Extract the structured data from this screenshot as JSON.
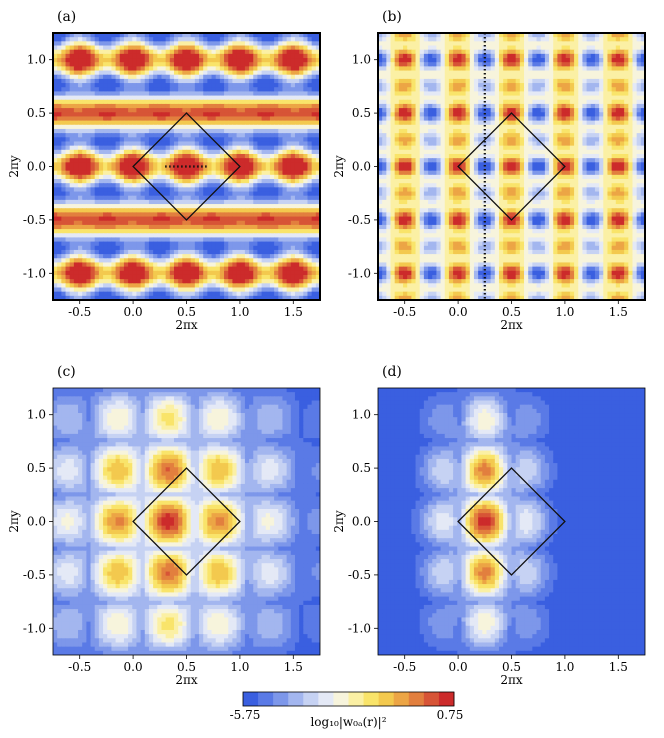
{
  "panels": [
    {
      "label": "(a)",
      "xlabel": "2πx",
      "ylabel": "2πy",
      "xticks": [
        "-0.5",
        "0.0",
        "0.5",
        "1.0",
        "1.5"
      ],
      "yticks": [
        "1.0",
        "0.5",
        "0.0",
        "-0.5",
        "-1.0"
      ]
    },
    {
      "label": "(b)",
      "xlabel": "2πx",
      "ylabel": "2πy",
      "xticks": [
        "-0.5",
        "0.0",
        "0.5",
        "1.0",
        "1.5"
      ],
      "yticks": [
        "1.0",
        "0.5",
        "0.0",
        "-0.5",
        "-1.0"
      ]
    },
    {
      "label": "(c)",
      "xlabel": "2πx",
      "ylabel": "2πy",
      "xticks": [
        "-0.5",
        "0.0",
        "0.5",
        "1.0",
        "1.5"
      ],
      "yticks": [
        "1.0",
        "0.5",
        "0.0",
        "-0.5",
        "-1.0"
      ]
    },
    {
      "label": "(d)",
      "xlabel": "2πx",
      "ylabel": "2πy",
      "xticks": [
        "-0.5",
        "0.0",
        "0.5",
        "1.0",
        "1.5"
      ],
      "yticks": [
        "1.0",
        "0.5",
        "0.0",
        "-0.5",
        "-1.0"
      ]
    }
  ],
  "colorbar": {
    "min_label": "-5.75",
    "max_label": "0.75",
    "label": "log₁₀|w₀ₐ(r)|²",
    "colors": [
      "#3a5fe0",
      "#5a7ae6",
      "#7d97ea",
      "#a3b6ef",
      "#c6d2f3",
      "#e4e9f6",
      "#f7f4dc",
      "#fbf0a4",
      "#f9e46a",
      "#f3c94e",
      "#eca545",
      "#e27f3e",
      "#d75436",
      "#cc2b2b"
    ]
  },
  "chart_data": [
    {
      "type": "heatmap",
      "title": "",
      "xlabel": "2πx",
      "ylabel": "2πy",
      "xlim": [
        -0.75,
        1.75
      ],
      "ylim": [
        -1.25,
        1.25
      ],
      "unit_cell_diamond": [
        [
          0.0,
          0.0
        ],
        [
          0.5,
          0.5
        ],
        [
          1.0,
          0.0
        ],
        [
          0.5,
          -0.5
        ]
      ],
      "dotted_segment": [
        [
          0.3,
          0.0
        ],
        [
          0.7,
          0.0
        ]
      ]
    },
    {
      "type": "heatmap",
      "title": "",
      "xlabel": "2πx",
      "ylabel": "2πy",
      "xlim": [
        -0.75,
        1.75
      ],
      "ylim": [
        -1.25,
        1.25
      ],
      "unit_cell_diamond": [
        [
          0.0,
          0.0
        ],
        [
          0.5,
          0.5
        ],
        [
          1.0,
          0.0
        ],
        [
          0.5,
          -0.5
        ]
      ],
      "dotted_line_x": 0.25
    },
    {
      "type": "heatmap",
      "title": "",
      "xlabel": "2πx",
      "ylabel": "2πy",
      "xlim": [
        -0.75,
        1.75
      ],
      "ylim": [
        -1.25,
        1.25
      ],
      "unit_cell_diamond": [
        [
          0.0,
          0.0
        ],
        [
          0.5,
          0.5
        ],
        [
          1.0,
          0.0
        ],
        [
          0.5,
          -0.5
        ]
      ],
      "peak": [
        0.33,
        0.0
      ]
    },
    {
      "type": "heatmap",
      "title": "",
      "xlabel": "2πx",
      "ylabel": "2πy",
      "xlim": [
        -0.75,
        1.75
      ],
      "ylim": [
        -1.25,
        1.25
      ],
      "unit_cell_diamond": [
        [
          0.0,
          0.0
        ],
        [
          0.5,
          0.5
        ],
        [
          1.0,
          0.0
        ],
        [
          0.5,
          -0.5
        ]
      ],
      "peak": [
        0.25,
        0.0
      ]
    }
  ]
}
